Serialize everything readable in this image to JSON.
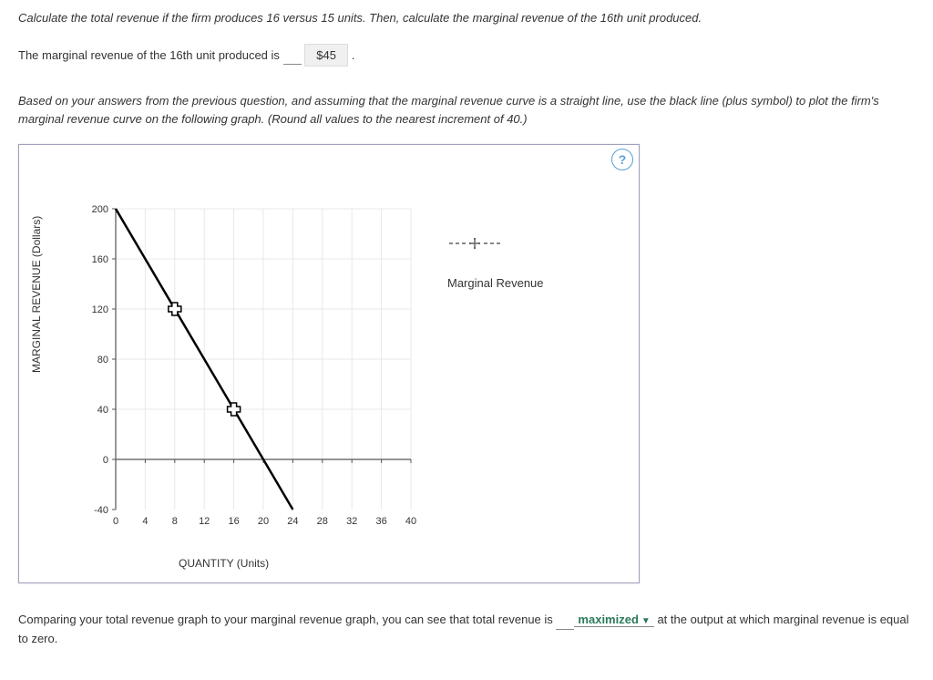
{
  "q1_instruction": "Calculate the total revenue if the firm produces 16 versus 15 units. Then, calculate the marginal revenue of the 16th unit produced.",
  "q1_sentence_pre": "The marginal revenue of the 16th unit produced is",
  "q1_answer": "$45",
  "q1_period": ".",
  "q2_instruction": "Based on your answers from the previous question, and assuming that the marginal revenue curve is a straight line, use the black line (plus symbol) to plot the firm's marginal revenue curve on the following graph. (Round all values to the nearest increment of 40.)",
  "chart": {
    "y_label": "MARGINAL REVENUE (Dollars)",
    "x_label": "QUANTITY (Units)",
    "y_ticks": [
      -40,
      0,
      40,
      80,
      120,
      160,
      200
    ],
    "x_ticks": [
      0,
      4,
      8,
      12,
      16,
      20,
      24,
      28,
      32,
      36,
      40
    ],
    "y_min": -40,
    "y_max": 200,
    "x_min": 0,
    "x_max": 40,
    "grid_color": "#e8e8e8",
    "axis_color": "#555",
    "line_color": "#000000",
    "marker_stroke": "#000000",
    "marker_fill": "#ffffff",
    "line_points": [
      {
        "x": 0,
        "y": 200
      },
      {
        "x": 24,
        "y": -40
      }
    ],
    "markers": [
      {
        "x": 8,
        "y": 120
      },
      {
        "x": 16,
        "y": 40
      }
    ],
    "legend_label": "Marginal Revenue",
    "legend_symbol_color": "#888888"
  },
  "help_icon": "?",
  "q3_pre": "Comparing your total revenue graph to your marginal revenue graph, you can see that total revenue is",
  "q3_answer": "maximized",
  "q3_post": "at the output at which marginal revenue is equal to zero."
}
